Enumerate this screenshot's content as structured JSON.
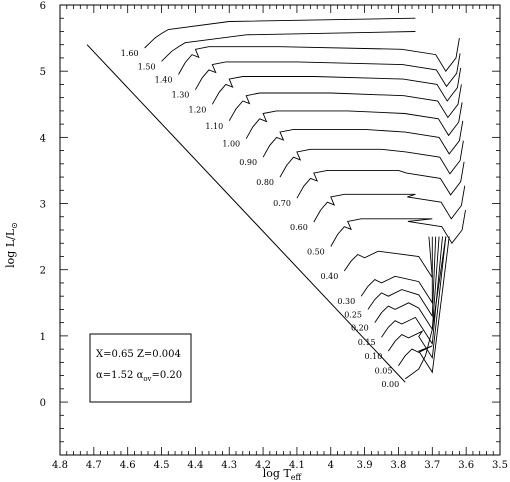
{
  "chart_data": {
    "type": "line",
    "title": "",
    "x_axis": {
      "label_main": "log T",
      "label_sub": "eff",
      "range": [
        4.8,
        3.5
      ],
      "reversed": true,
      "ticks": [
        "4.8",
        "4.7",
        "4.6",
        "4.5",
        "4.4",
        "4.3",
        "4.2",
        "4.1",
        "4",
        "3.9",
        "3.8",
        "3.7",
        "3.6",
        "3.5"
      ],
      "tick_values": [
        4.8,
        4.7,
        4.6,
        4.5,
        4.4,
        4.3,
        4.2,
        4.1,
        4.0,
        3.9,
        3.8,
        3.7,
        3.6,
        3.5
      ]
    },
    "y_axis": {
      "label_main": "log L/L",
      "label_sub": "⊙",
      "range": [
        -0.8,
        6
      ],
      "ticks": [
        "0",
        "1",
        "2",
        "3",
        "4",
        "5",
        "6"
      ],
      "tick_values": [
        0,
        1,
        2,
        3,
        4,
        5,
        6
      ]
    },
    "legend_box": {
      "line1": "X=0.65 Z=0.004",
      "line2": "α=1.52 α",
      "line2_sub": "ov",
      "line2_end": "=0.20",
      "position": "bottom-left"
    },
    "zams": {
      "start": [
        4.72,
        5.4
      ],
      "end": [
        3.78,
        0.3
      ]
    },
    "tracks": [
      {
        "mass": 0.0,
        "label": "0.00",
        "zams": [
          3.78,
          0.35
        ]
      },
      {
        "mass": 0.05,
        "label": "0.05",
        "zams": [
          3.8,
          0.55
        ]
      },
      {
        "mass": 0.1,
        "label": "0.10",
        "zams": [
          3.83,
          0.77
        ]
      },
      {
        "mass": 0.15,
        "label": "0.15",
        "zams": [
          3.85,
          0.98
        ]
      },
      {
        "mass": 0.2,
        "label": "0.20",
        "zams": [
          3.87,
          1.2
        ]
      },
      {
        "mass": 0.25,
        "label": "0.25",
        "zams": [
          3.89,
          1.4
        ]
      },
      {
        "mass": 0.3,
        "label": "0.30",
        "zams": [
          3.91,
          1.6
        ]
      },
      {
        "mass": 0.4,
        "label": "0.40",
        "zams": [
          3.96,
          1.98
        ]
      },
      {
        "mass": 0.5,
        "label": "0.50",
        "zams": [
          4.0,
          2.35
        ]
      },
      {
        "mass": 0.6,
        "label": "0.60",
        "zams": [
          4.05,
          2.72
        ]
      },
      {
        "mass": 0.7,
        "label": "0.70",
        "zams": [
          4.1,
          3.08
        ]
      },
      {
        "mass": 0.8,
        "label": "0.80",
        "zams": [
          4.15,
          3.4
        ]
      },
      {
        "mass": 0.9,
        "label": "0.90",
        "zams": [
          4.2,
          3.7
        ]
      },
      {
        "mass": 1.0,
        "label": "1.00",
        "zams": [
          4.25,
          3.98
        ]
      },
      {
        "mass": 1.1,
        "label": "1.10",
        "zams": [
          4.3,
          4.25
        ]
      },
      {
        "mass": 1.2,
        "label": "1.20",
        "zams": [
          4.35,
          4.5
        ]
      },
      {
        "mass": 1.3,
        "label": "1.30",
        "zams": [
          4.4,
          4.72
        ]
      },
      {
        "mass": 1.4,
        "label": "1.40",
        "zams": [
          4.45,
          4.95
        ]
      },
      {
        "mass": 1.5,
        "label": "1.50",
        "zams": [
          4.5,
          5.15
        ]
      },
      {
        "mass": 1.6,
        "label": "1.60",
        "zams": [
          4.55,
          5.35
        ]
      }
    ]
  }
}
